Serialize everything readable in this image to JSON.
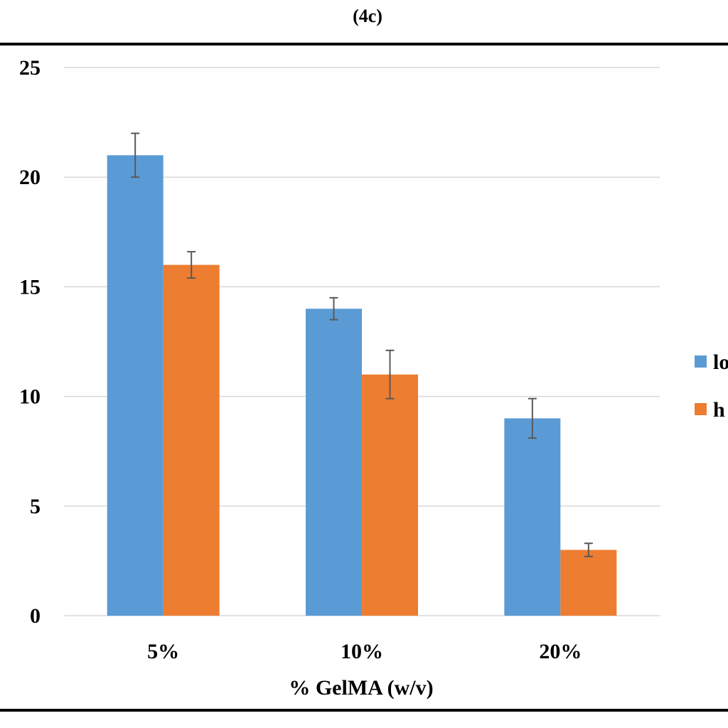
{
  "figure_label": "(4c)",
  "chart_data": {
    "type": "bar",
    "categories": [
      "5%",
      "10%",
      "20%"
    ],
    "series": [
      {
        "name": "lo",
        "color": "#5B9BD5",
        "values": [
          21,
          14,
          9
        ],
        "errors": [
          1.0,
          0.5,
          0.9
        ]
      },
      {
        "name": "h",
        "color": "#ED7D31",
        "values": [
          16,
          11,
          3
        ],
        "errors": [
          0.6,
          1.1,
          0.3
        ]
      }
    ],
    "xlabel": "% GelMA (w/v)",
    "ylabel": "",
    "ylim": [
      0,
      25
    ],
    "yticks": [
      0,
      5,
      10,
      15,
      20,
      25
    ],
    "grid": true,
    "legend_position": "right"
  }
}
